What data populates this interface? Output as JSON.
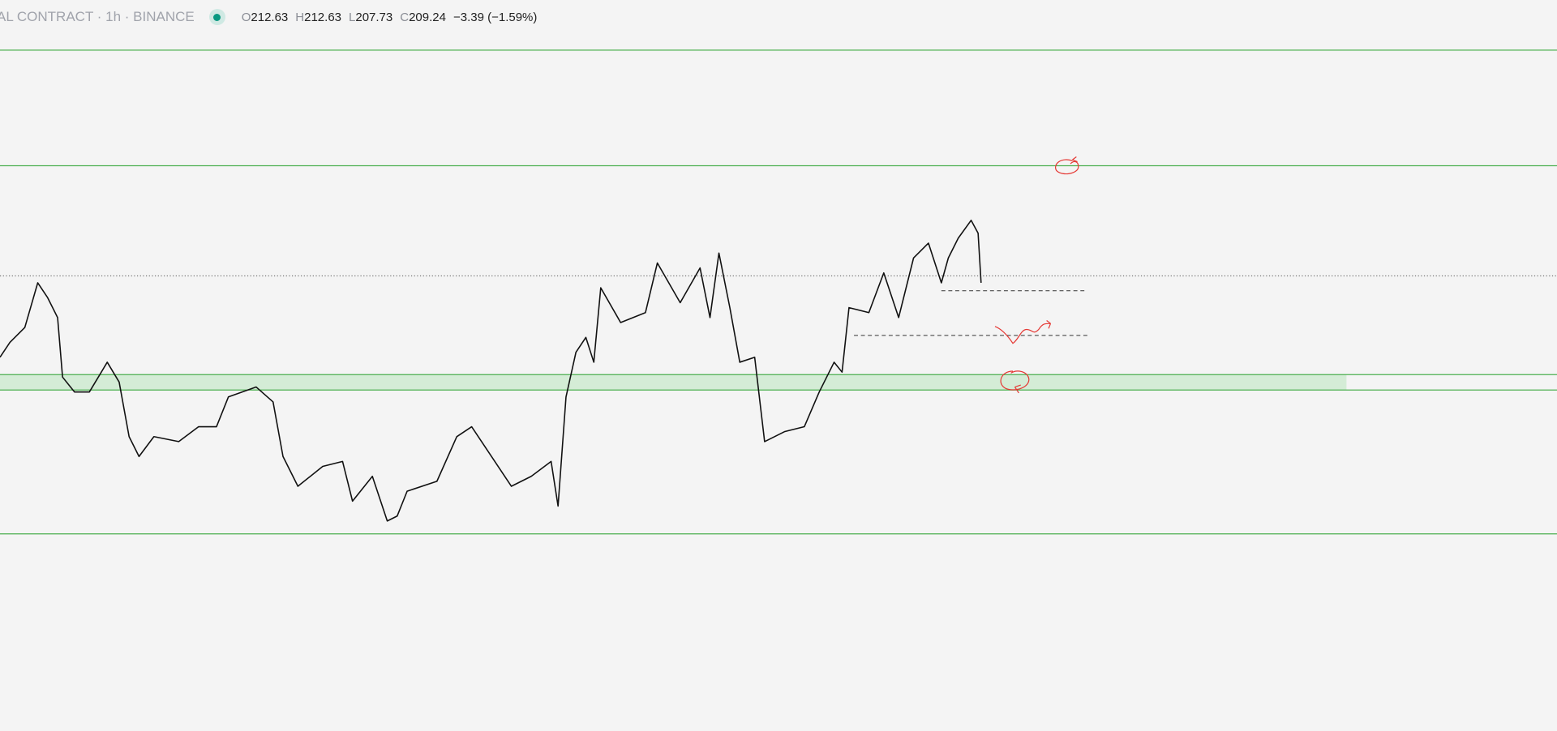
{
  "header": {
    "title": "AL CONTRACT · 1h · BINANCE",
    "ohlc": [
      {
        "label": "O",
        "value": "212.63"
      },
      {
        "label": "H",
        "value": "212.63"
      },
      {
        "label": "L",
        "value": "207.73"
      },
      {
        "label": "C",
        "value": "209.24"
      }
    ],
    "change": "−3.39 (−1.59%)"
  }
}
